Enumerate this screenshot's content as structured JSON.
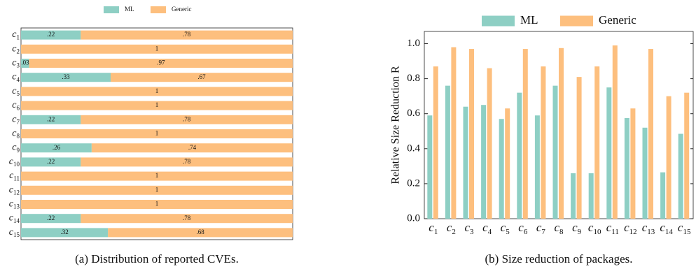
{
  "chart_data": [
    {
      "type": "bar",
      "orientation": "horizontal",
      "stacked": true,
      "caption": "(a) Distribution of reported CVEs.",
      "categories": [
        "c1",
        "c2",
        "c3",
        "c4",
        "c5",
        "c6",
        "c7",
        "c8",
        "c9",
        "c10",
        "c11",
        "c12",
        "c13",
        "c14",
        "c15"
      ],
      "series": [
        {
          "name": "ML",
          "color": "#8ecfc4",
          "values": [
            0.22,
            0,
            0.03,
            0.33,
            0,
            0,
            0.22,
            0,
            0.26,
            0.22,
            0,
            0,
            0,
            0.22,
            0.32
          ],
          "value_labels": [
            ".22",
            null,
            ".03",
            ".33",
            null,
            null,
            ".22",
            null,
            ".26",
            ".22",
            null,
            null,
            null,
            ".22",
            ".32"
          ]
        },
        {
          "name": "Generic",
          "color": "#fdbf7e",
          "values": [
            0.78,
            1,
            0.97,
            0.67,
            1,
            1,
            0.78,
            1,
            0.74,
            0.78,
            1,
            1,
            1,
            0.78,
            0.68
          ],
          "value_labels": [
            ".78",
            "1",
            ".97",
            ".67",
            "1",
            "1",
            ".78",
            "1",
            ".74",
            ".78",
            "1",
            "1",
            "1",
            ".78",
            ".68"
          ]
        }
      ],
      "xlim": [
        0,
        1
      ],
      "legend": "upper center"
    },
    {
      "type": "bar",
      "orientation": "vertical",
      "stacked": false,
      "caption": "(b) Size reduction of packages.",
      "ylabel": "Relative Size Reduction R",
      "categories": [
        "c1",
        "c2",
        "c3",
        "c4",
        "c5",
        "c6",
        "c7",
        "c8",
        "c9",
        "c10",
        "c11",
        "c12",
        "c13",
        "c14",
        "c15"
      ],
      "series": [
        {
          "name": "ML",
          "color": "#8ecfc4",
          "values": [
            0.59,
            0.76,
            0.64,
            0.65,
            0.57,
            0.72,
            0.59,
            0.76,
            0.26,
            0.26,
            0.75,
            0.575,
            0.52,
            0.265,
            0.485
          ]
        },
        {
          "name": "Generic",
          "color": "#fdbf7e",
          "values": [
            0.87,
            0.98,
            0.97,
            0.86,
            0.63,
            0.97,
            0.87,
            0.975,
            0.81,
            0.87,
            0.99,
            0.63,
            0.97,
            0.7,
            0.72
          ]
        }
      ],
      "ylim": [
        0,
        1.07
      ],
      "yticks": [
        {
          "value": 0,
          "label": "0.0"
        },
        {
          "value": 0.2,
          "label": "0.2"
        },
        {
          "value": 0.4,
          "label": "0.4"
        },
        {
          "value": 0.6,
          "label": "0.6"
        },
        {
          "value": 0.8,
          "label": "0.8"
        },
        {
          "value": 1,
          "label": "1.0"
        }
      ],
      "legend": "upper center"
    }
  ]
}
